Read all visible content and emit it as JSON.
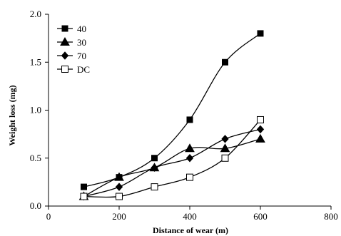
{
  "chart_data": {
    "type": "line",
    "title": "",
    "xlabel": "Distance of wear (m)",
    "ylabel": "Weight loss (mg)",
    "xlim": [
      0,
      800
    ],
    "ylim": [
      0,
      2.0
    ],
    "x_ticks": [
      "0",
      "200",
      "400",
      "600",
      "800"
    ],
    "y_ticks": [
      "0.0",
      "0.5",
      "1.0",
      "1.5",
      "2.0"
    ],
    "grid": false,
    "legend_position": "top-left",
    "x": [
      100,
      200,
      300,
      400,
      500,
      600
    ],
    "series": [
      {
        "name": "40",
        "marker": "square-filled",
        "color": "#000000",
        "values": [
          0.2,
          0.3,
          0.5,
          0.9,
          1.5,
          1.8
        ]
      },
      {
        "name": "30",
        "marker": "triangle-filled",
        "color": "#000000",
        "values": [
          0.1,
          0.3,
          0.4,
          0.6,
          0.6,
          0.7
        ]
      },
      {
        "name": "70",
        "marker": "diamond-filled",
        "color": "#000000",
        "values": [
          0.1,
          0.2,
          0.4,
          0.5,
          0.7,
          0.8
        ]
      },
      {
        "name": "DC",
        "marker": "square-open",
        "color": "#000000",
        "values": [
          0.1,
          0.1,
          0.2,
          0.3,
          0.5,
          0.9
        ]
      }
    ]
  }
}
